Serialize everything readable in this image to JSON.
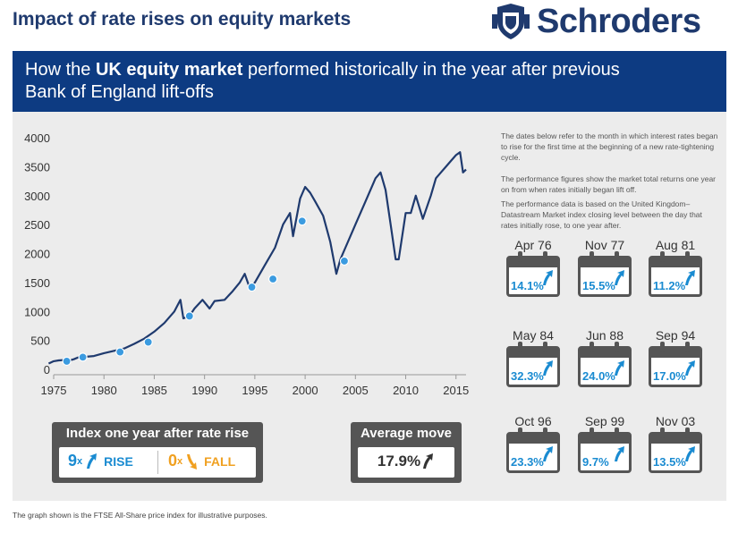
{
  "header": {
    "title": "Impact of rate rises on equity markets",
    "brand": "Schroders"
  },
  "banner": {
    "line1_pre": "How the ",
    "line1_bold": "UK equity market",
    "line1_post": " performed historically in the year after previous",
    "line2": "Bank of England lift-offs"
  },
  "info_text": [
    "The dates below refer to the month in which interest rates began to rise for the first time at the beginning of a new rate-tightening cycle.",
    "The performance figures show the market total returns one year on from when rates initially began lift off.",
    "The performance data is based on the United Kingdom–Datastream Market index closing level between the day that rates initially rose, to one year after."
  ],
  "calendars": [
    {
      "date": "Apr 76",
      "pct": "14.1%"
    },
    {
      "date": "Nov 77",
      "pct": "15.5%"
    },
    {
      "date": "Aug 81",
      "pct": "11.2%"
    },
    {
      "date": "May 84",
      "pct": "32.3%"
    },
    {
      "date": "Jun 88",
      "pct": "24.0%"
    },
    {
      "date": "Sep 94",
      "pct": "17.0%"
    },
    {
      "date": "Oct 96",
      "pct": "23.3%"
    },
    {
      "date": "Sep 99",
      "pct": "9.7%"
    },
    {
      "date": "Nov 03",
      "pct": "13.5%"
    }
  ],
  "index_box": {
    "title": "Index one year after rate rise",
    "rise_count": "9",
    "rise_x": "x",
    "rise_label": "RISE",
    "fall_count": "0",
    "fall_x": "x",
    "fall_label": "FALL"
  },
  "average_box": {
    "title": "Average move",
    "value": "17.9%"
  },
  "footnote": "The graph shown is the FTSE All-Share price index for illustrative purposes.",
  "colors": {
    "navy": "#1f3a6e",
    "banner": "#0d3b82",
    "line": "#1f3a6e",
    "marker": "#3b9be0",
    "rise": "#1a8bd1",
    "fall": "#f0a020"
  },
  "chart_data": {
    "type": "line",
    "xlim": [
      1975,
      2016
    ],
    "ylim": [
      0,
      4000
    ],
    "x_ticks": [
      1975,
      1980,
      1985,
      1990,
      1995,
      2000,
      2005,
      2010,
      2015
    ],
    "y_ticks": [
      0,
      500,
      1000,
      1500,
      2000,
      2500,
      3000,
      3500,
      4000
    ],
    "series": [
      {
        "x": [
          1974.5,
          1975.0,
          1975.5,
          1976.0,
          1976.5,
          1977.0,
          1977.5,
          1978.0,
          1979.0,
          1980.0,
          1981.0,
          1982.0,
          1983.0,
          1984.0,
          1985.0,
          1986.0,
          1987.0,
          1987.6,
          1987.9,
          1988.5,
          1989.0,
          1989.8,
          1990.5,
          1991.0,
          1992.0,
          1992.8,
          1993.5,
          1994.0,
          1994.5,
          1995.0,
          1996.0,
          1997.0,
          1997.8,
          1998.5,
          1998.8,
          1999.5,
          2000.0,
          2000.5,
          2001.0,
          2001.8,
          2002.5,
          2003.1,
          2003.5,
          2004.0,
          2005.0,
          2006.0,
          2007.0,
          2007.5,
          2008.0,
          2008.5,
          2009.0,
          2009.3,
          2010.0,
          2010.5,
          2011.0,
          2011.7,
          2012.5,
          2013.0,
          2013.5,
          2014.0,
          2014.5,
          2015.0,
          2015.4,
          2015.7,
          2016.0
        ],
        "y": [
          100,
          140,
          155,
          160,
          150,
          175,
          210,
          215,
          230,
          280,
          320,
          360,
          440,
          530,
          650,
          800,
          1000,
          1200,
          880,
          920,
          1050,
          1200,
          1050,
          1180,
          1200,
          1350,
          1500,
          1650,
          1400,
          1500,
          1800,
          2100,
          2500,
          2700,
          2300,
          2950,
          3150,
          3050,
          2900,
          2650,
          2200,
          1650,
          1900,
          2100,
          2500,
          2900,
          3300,
          3400,
          3100,
          2500,
          1900,
          1900,
          2700,
          2700,
          3000,
          2600,
          3000,
          3300,
          3400,
          3500,
          3600,
          3700,
          3750,
          3400,
          3450
        ]
      }
    ],
    "markers": [
      {
        "x": 1976.3,
        "y": 140
      },
      {
        "x": 1977.9,
        "y": 210
      },
      {
        "x": 1981.6,
        "y": 300
      },
      {
        "x": 1984.4,
        "y": 470
      },
      {
        "x": 1988.5,
        "y": 920
      },
      {
        "x": 1994.7,
        "y": 1420
      },
      {
        "x": 1996.8,
        "y": 1560
      },
      {
        "x": 1999.7,
        "y": 2560
      },
      {
        "x": 2003.9,
        "y": 1870
      }
    ]
  }
}
